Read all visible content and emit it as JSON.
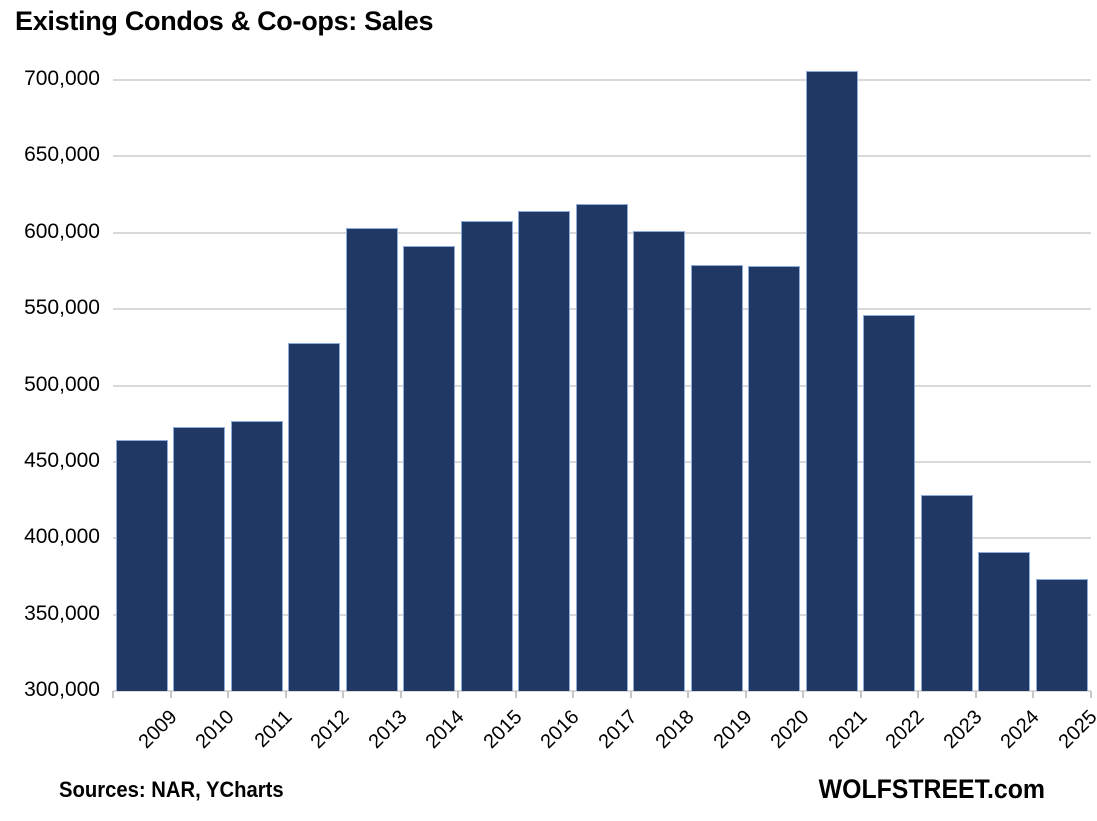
{
  "title": "Existing Condos & Co-ops: Sales",
  "footer": {
    "sources": "Sources: NAR, YCharts",
    "brand": "WOLFSTREET.com"
  },
  "colors": {
    "bar_fill": "#1F3864",
    "bar_border": "#8FAADC",
    "gridline": "#D9D9D9",
    "axis_tick": "#C6C6C6",
    "text": "#000000"
  },
  "chart_data": {
    "type": "bar",
    "title": "Existing Condos & Co-ops: Sales",
    "xlabel": "",
    "ylabel": "",
    "categories": [
      "2009",
      "2010",
      "2011",
      "2012",
      "2013",
      "2014",
      "2015",
      "2016",
      "2017",
      "2018",
      "2019",
      "2020",
      "2021",
      "2022",
      "2023",
      "2024",
      "2025"
    ],
    "values": [
      464000,
      473000,
      477000,
      528000,
      603000,
      591000,
      608000,
      614000,
      619000,
      601000,
      579000,
      578000,
      706000,
      546000,
      428000,
      391000,
      373000
    ],
    "ylim": [
      300000,
      700000
    ],
    "ytick_step": 50000,
    "ytick_labels": [
      "300,000",
      "350,000",
      "400,000",
      "450,000",
      "500,000",
      "550,000",
      "600,000",
      "650,000",
      "700,000"
    ],
    "grid": true,
    "legend": "none"
  }
}
